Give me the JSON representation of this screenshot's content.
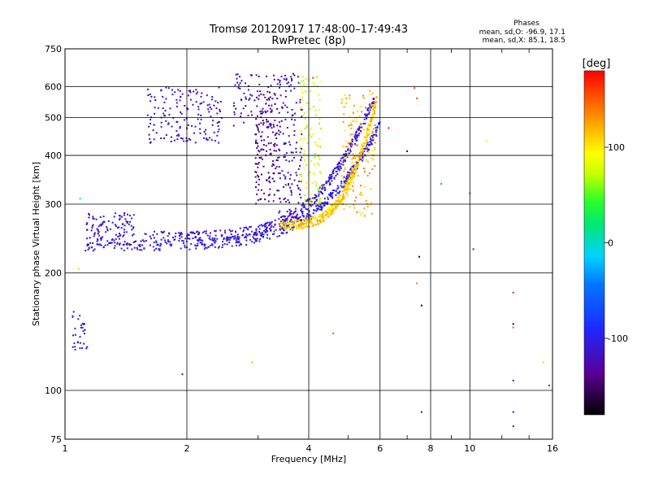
{
  "chart_data": {
    "type": "scatter",
    "title": "Tromsø 20120917 17:48:00–17:49:43",
    "subtitle": "RwPretec (8p)",
    "xlabel": "Frequency [MHz]",
    "ylabel": "Stationary phase Virtual Height [km]",
    "x_scale": "log",
    "y_scale": "log",
    "xlim": [
      1,
      16
    ],
    "ylim": [
      75,
      750
    ],
    "x_ticks": [
      1,
      2,
      4,
      6,
      8,
      10,
      16
    ],
    "y_ticks": [
      75,
      100,
      200,
      300,
      400,
      500,
      600,
      750
    ],
    "grid": true,
    "stats_header": "Phases",
    "stats_o": "mean, sd,O: -96.9, 17.1",
    "stats_x": "mean, sd,X:  85.1, 18.5",
    "colorbar": {
      "label": "[deg]",
      "range": [
        -180,
        180
      ],
      "ticks": [
        100,
        0,
        -100
      ],
      "tick_labels": [
        "100",
        "0",
        "-100"
      ]
    },
    "traces": [
      {
        "kind": "o_trace_lower",
        "f_start": 1.12,
        "f_end": 6.0,
        "h_start": 235,
        "h_end": 480,
        "f_crit": 6.05,
        "phase": -100
      },
      {
        "kind": "o_trace_upper",
        "f_start": 1.55,
        "f_end": 5.8,
        "h_start": 248,
        "h_end": 560,
        "f_crit": 5.9,
        "phase": -110
      },
      {
        "kind": "x_trace",
        "f_start": 3.4,
        "f_end": 5.9,
        "h_start": 265,
        "h_end": 560,
        "f_crit": 6.0,
        "phase": 110
      }
    ],
    "clusters": [
      {
        "f": [
          1.04,
          1.14
        ],
        "h": [
          125,
          160
        ],
        "n": 30,
        "phase": -105
      },
      {
        "f": [
          1.13,
          1.48
        ],
        "h": [
          235,
          285
        ],
        "n": 120,
        "phase": -110
      },
      {
        "f": [
          1.6,
          2.45
        ],
        "h": [
          430,
          600
        ],
        "n": 160,
        "phase": -115
      },
      {
        "f": [
          2.6,
          3.3
        ],
        "h": [
          470,
          650
        ],
        "n": 70,
        "phase": -130
      },
      {
        "f": [
          2.95,
          3.35
        ],
        "h": [
          300,
          600
        ],
        "n": 140,
        "phase": -140
      },
      {
        "f": [
          3.35,
          3.85
        ],
        "h": [
          260,
          650
        ],
        "n": 150,
        "phase": -120
      },
      {
        "f": [
          3.8,
          4.3
        ],
        "h": [
          300,
          640
        ],
        "n": 110,
        "phase": 80
      },
      {
        "f": [
          4.8,
          5.85
        ],
        "h": [
          280,
          590
        ],
        "n": 150,
        "phase": 120
      }
    ],
    "isolated_points": [
      {
        "f": 7.4,
        "h": 560,
        "phase": 150
      },
      {
        "f": 7.3,
        "h": 595,
        "phase": 160
      },
      {
        "f": 6.3,
        "h": 470,
        "phase": 170
      },
      {
        "f": 7.0,
        "h": 410,
        "phase": -160
      },
      {
        "f": 7.5,
        "h": 220,
        "phase": -170
      },
      {
        "f": 7.4,
        "h": 188,
        "phase": 140
      },
      {
        "f": 7.6,
        "h": 165,
        "phase": -170
      },
      {
        "f": 7.6,
        "h": 88,
        "phase": -120
      },
      {
        "f": 8.5,
        "h": 338,
        "phase": -30
      },
      {
        "f": 10.2,
        "h": 230,
        "phase": -90
      },
      {
        "f": 10.0,
        "h": 320,
        "phase": -40
      },
      {
        "f": 11.0,
        "h": 435,
        "phase": 100
      },
      {
        "f": 12.8,
        "h": 178,
        "phase": 170
      },
      {
        "f": 12.8,
        "h": 148,
        "phase": -160
      },
      {
        "f": 12.8,
        "h": 145,
        "phase": 150
      },
      {
        "f": 12.8,
        "h": 106,
        "phase": -120
      },
      {
        "f": 12.8,
        "h": 88,
        "phase": -110
      },
      {
        "f": 12.8,
        "h": 81,
        "phase": -100
      },
      {
        "f": 15.2,
        "h": 118,
        "phase": 110
      },
      {
        "f": 15.7,
        "h": 103,
        "phase": -80
      },
      {
        "f": 1.08,
        "h": 205,
        "phase": 110
      },
      {
        "f": 1.09,
        "h": 310,
        "phase": -10
      },
      {
        "f": 1.95,
        "h": 110,
        "phase": -110
      },
      {
        "f": 2.9,
        "h": 118,
        "phase": 120
      },
      {
        "f": 4.6,
        "h": 140,
        "phase": 150
      },
      {
        "f": 4.1,
        "h": 632,
        "phase": 170
      }
    ]
  }
}
